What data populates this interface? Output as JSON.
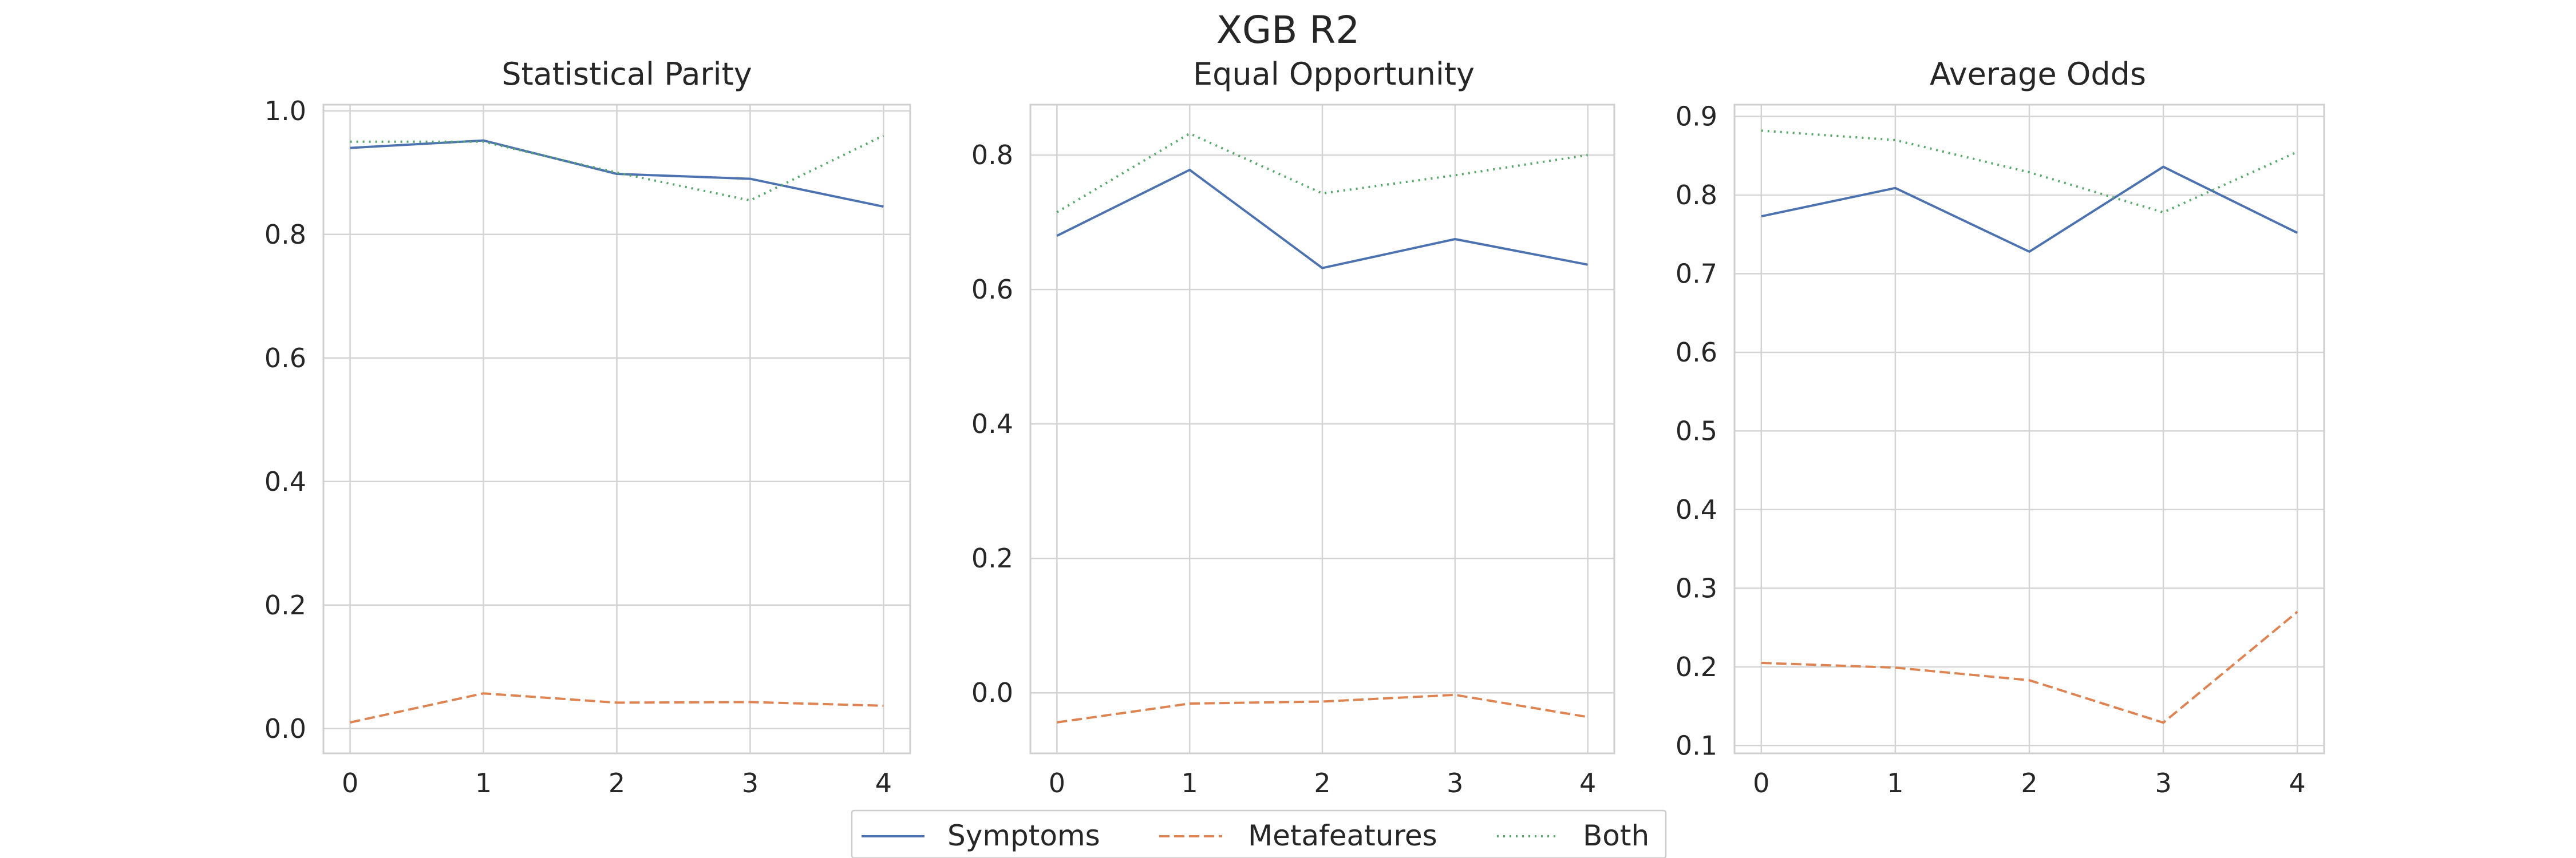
{
  "title": "XGB R2",
  "colors": {
    "Symptoms": "#4c72b0",
    "Metafeatures": "#dd8452",
    "Both": "#55a868",
    "grid": "#d4d4d4"
  },
  "legend": {
    "placement": "bottom-center",
    "items": [
      "Symptoms",
      "Metafeatures",
      "Both"
    ]
  },
  "chart_data": [
    {
      "type": "line",
      "title": "Statistical Parity",
      "x": [
        0,
        1,
        2,
        3,
        4
      ],
      "xticks": [
        "0",
        "1",
        "2",
        "3",
        "4"
      ],
      "xlim": [
        -0.2,
        4.2
      ],
      "ylim": [
        -0.04,
        1.01
      ],
      "yticks": [
        "0.0",
        "0.2",
        "0.4",
        "0.6",
        "0.8",
        "1.0"
      ],
      "ytick_values": [
        0.0,
        0.2,
        0.4,
        0.6,
        0.8,
        1.0
      ],
      "grid": true,
      "series": [
        {
          "name": "Symptoms",
          "style": "solid",
          "values": [
            0.94,
            0.952,
            0.898,
            0.89,
            0.845
          ]
        },
        {
          "name": "Metafeatures",
          "style": "dashed",
          "values": [
            0.01,
            0.057,
            0.042,
            0.043,
            0.037
          ]
        },
        {
          "name": "Both",
          "style": "dotted",
          "values": [
            0.95,
            0.95,
            0.9,
            0.855,
            0.96
          ]
        }
      ]
    },
    {
      "type": "line",
      "title": "Equal Opportunity",
      "x": [
        0,
        1,
        2,
        3,
        4
      ],
      "xticks": [
        "0",
        "1",
        "2",
        "3",
        "4"
      ],
      "xlim": [
        -0.2,
        4.2
      ],
      "ylim": [
        -0.09,
        0.875
      ],
      "yticks": [
        "0.0",
        "0.2",
        "0.4",
        "0.6",
        "0.8"
      ],
      "ytick_values": [
        0.0,
        0.2,
        0.4,
        0.6,
        0.8
      ],
      "grid": true,
      "series": [
        {
          "name": "Symptoms",
          "style": "solid",
          "values": [
            0.68,
            0.778,
            0.632,
            0.675,
            0.637
          ]
        },
        {
          "name": "Metafeatures",
          "style": "dashed",
          "values": [
            -0.044,
            -0.016,
            -0.013,
            -0.003,
            -0.036
          ]
        },
        {
          "name": "Both",
          "style": "dotted",
          "values": [
            0.715,
            0.832,
            0.743,
            0.77,
            0.8
          ]
        }
      ]
    },
    {
      "type": "line",
      "title": "Average Odds",
      "x": [
        0,
        1,
        2,
        3,
        4
      ],
      "xticks": [
        "0",
        "1",
        "2",
        "3",
        "4"
      ],
      "xlim": [
        -0.2,
        4.2
      ],
      "ylim": [
        0.09,
        0.915
      ],
      "yticks": [
        "0.1",
        "0.2",
        "0.3",
        "0.4",
        "0.5",
        "0.6",
        "0.7",
        "0.8",
        "0.9"
      ],
      "ytick_values": [
        0.1,
        0.2,
        0.3,
        0.4,
        0.5,
        0.6,
        0.7,
        0.8,
        0.9
      ],
      "grid": true,
      "series": [
        {
          "name": "Symptoms",
          "style": "solid",
          "values": [
            0.773,
            0.809,
            0.728,
            0.836,
            0.752
          ]
        },
        {
          "name": "Metafeatures",
          "style": "dashed",
          "values": [
            0.205,
            0.199,
            0.183,
            0.129,
            0.27
          ]
        },
        {
          "name": "Both",
          "style": "dotted",
          "values": [
            0.882,
            0.87,
            0.829,
            0.778,
            0.855
          ]
        }
      ]
    }
  ]
}
